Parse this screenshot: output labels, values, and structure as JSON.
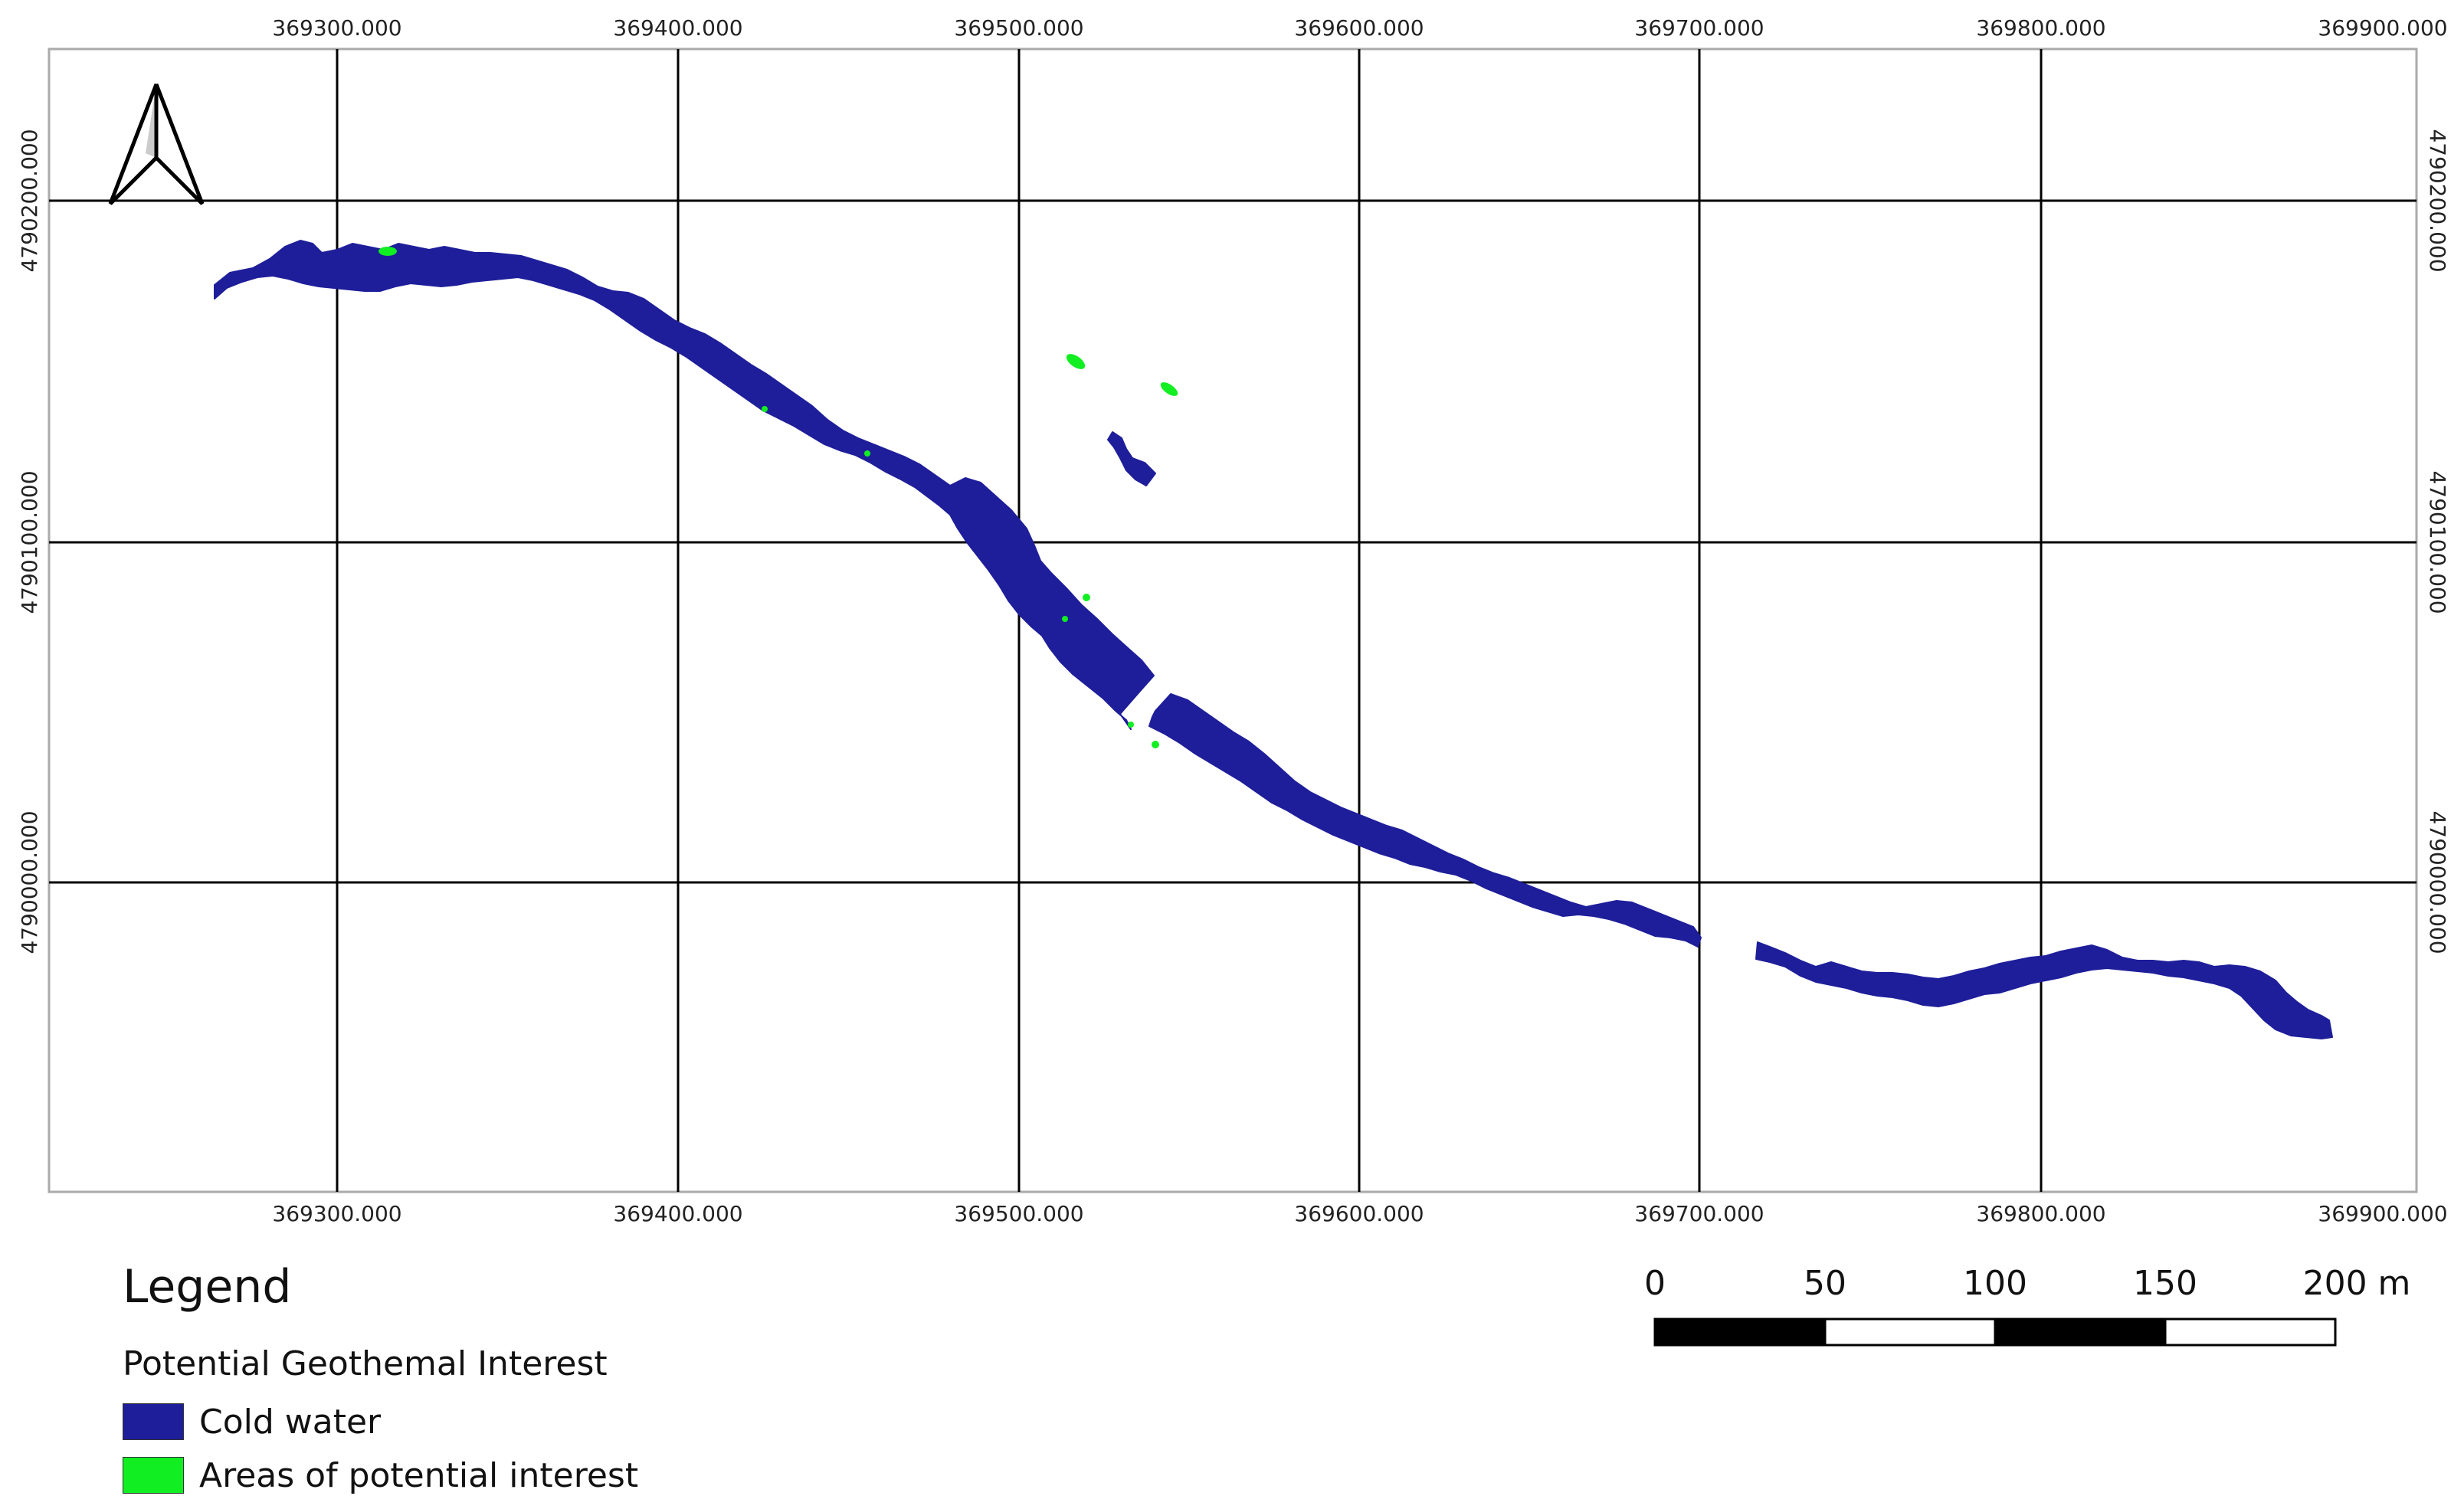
{
  "map": {
    "x_ticks": [
      "369300.000",
      "369400.000",
      "369500.000",
      "369600.000",
      "369700.000",
      "369800.000",
      "369900.000"
    ],
    "y_ticks": [
      "4790200.000",
      "4790100.000",
      "4790000.000"
    ],
    "colors": {
      "cold_water": "#1e1e9a",
      "potential_interest": "#11ee22",
      "grid": "#000000",
      "frame": "#aaaaaa"
    }
  },
  "north_arrow": {
    "icon": "north-arrow-icon"
  },
  "scale_bar": {
    "labels": [
      "0",
      "50",
      "100",
      "150",
      "200 m"
    ]
  },
  "legend": {
    "title": "Legend",
    "subtitle": "Potential Geothemal Interest",
    "items": [
      {
        "label": "Cold water",
        "color": "#1e1e9a"
      },
      {
        "label": "Areas of potential interest",
        "color": "#11ee22"
      }
    ]
  }
}
